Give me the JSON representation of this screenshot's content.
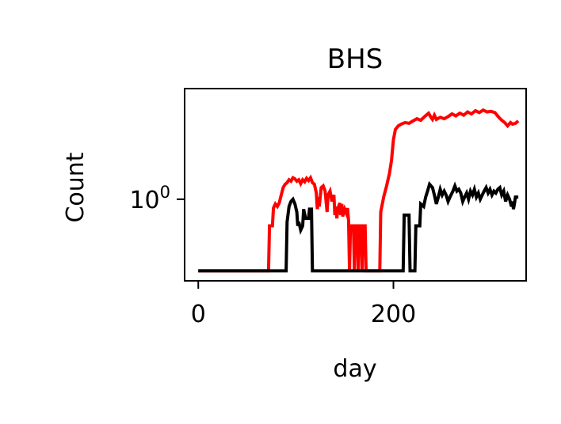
{
  "chart_data": {
    "type": "line",
    "title": "BHS",
    "xlabel": "day",
    "ylabel": "Count",
    "x_scale": "linear",
    "y_scale": "log",
    "xlim": [
      -14,
      336
    ],
    "ylim": [
      0.16,
      12
    ],
    "xticks": [
      {
        "value": 0,
        "label": "0"
      },
      {
        "value": 200,
        "label": "200"
      }
    ],
    "yticks": [
      {
        "value": 1,
        "base": "10",
        "exponent": "0"
      }
    ],
    "grid": false,
    "legend": "none",
    "series": [
      {
        "color": "#ff0000",
        "points": [
          [
            0,
            0.2
          ],
          [
            72,
            0.2
          ],
          [
            73,
            0.55
          ],
          [
            76,
            0.55
          ],
          [
            77,
            0.82
          ],
          [
            79,
            0.9
          ],
          [
            81,
            0.85
          ],
          [
            83,
            0.92
          ],
          [
            85,
            1.1
          ],
          [
            87,
            1.3
          ],
          [
            89,
            1.4
          ],
          [
            91,
            1.45
          ],
          [
            93,
            1.55
          ],
          [
            95,
            1.5
          ],
          [
            97,
            1.62
          ],
          [
            99,
            1.58
          ],
          [
            101,
            1.5
          ],
          [
            103,
            1.55
          ],
          [
            105,
            1.42
          ],
          [
            107,
            1.55
          ],
          [
            109,
            1.48
          ],
          [
            111,
            1.6
          ],
          [
            113,
            1.52
          ],
          [
            115,
            1.62
          ],
          [
            117,
            1.45
          ],
          [
            119,
            1.4
          ],
          [
            121,
            1.15
          ],
          [
            122,
            0.8
          ],
          [
            123,
            1.05
          ],
          [
            124,
            0.85
          ],
          [
            126,
            1.3
          ],
          [
            128,
            1.35
          ],
          [
            130,
            1.2
          ],
          [
            132,
            0.75
          ],
          [
            133,
            1.1
          ],
          [
            135,
            1.2
          ],
          [
            137,
            0.95
          ],
          [
            139,
            1.1
          ],
          [
            140,
            0.7
          ],
          [
            141,
            0.85
          ],
          [
            142,
            0.65
          ],
          [
            143,
            0.8
          ],
          [
            145,
            0.92
          ],
          [
            146,
            0.7
          ],
          [
            147,
            0.9
          ],
          [
            148,
            0.68
          ],
          [
            150,
            0.8
          ],
          [
            152,
            0.72
          ],
          [
            153,
            0.82
          ],
          [
            154,
            0.62
          ],
          [
            155,
            0.2
          ],
          [
            156,
            0.55
          ],
          [
            159,
            0.55
          ],
          [
            160,
            0.2
          ],
          [
            161,
            0.55
          ],
          [
            163,
            0.55
          ],
          [
            164,
            0.2
          ],
          [
            165,
            0.55
          ],
          [
            167,
            0.55
          ],
          [
            168,
            0.2
          ],
          [
            169,
            0.55
          ],
          [
            171,
            0.55
          ],
          [
            172,
            0.2
          ],
          [
            186,
            0.2
          ],
          [
            187,
            0.75
          ],
          [
            190,
            1.05
          ],
          [
            193,
            1.35
          ],
          [
            196,
            1.8
          ],
          [
            198,
            2.4
          ],
          [
            200,
            3.8
          ],
          [
            202,
            4.8
          ],
          [
            205,
            5.2
          ],
          [
            208,
            5.4
          ],
          [
            212,
            5.6
          ],
          [
            216,
            5.5
          ],
          [
            220,
            5.8
          ],
          [
            224,
            6.1
          ],
          [
            228,
            5.9
          ],
          [
            232,
            6.4
          ],
          [
            236,
            6.9
          ],
          [
            238,
            6.4
          ],
          [
            240,
            6.0
          ],
          [
            242,
            6.6
          ],
          [
            244,
            6.0
          ],
          [
            248,
            6.3
          ],
          [
            252,
            6.1
          ],
          [
            256,
            6.4
          ],
          [
            260,
            6.8
          ],
          [
            264,
            6.5
          ],
          [
            268,
            6.9
          ],
          [
            272,
            6.6
          ],
          [
            276,
            7.1
          ],
          [
            280,
            6.8
          ],
          [
            284,
            7.3
          ],
          [
            288,
            7.0
          ],
          [
            292,
            7.4
          ],
          [
            296,
            7.1
          ],
          [
            300,
            7.2
          ],
          [
            304,
            7.0
          ],
          [
            308,
            6.3
          ],
          [
            311,
            5.9
          ],
          [
            314,
            5.6
          ],
          [
            317,
            5.2
          ],
          [
            320,
            5.6
          ],
          [
            322,
            5.4
          ],
          [
            325,
            5.5
          ],
          [
            328,
            5.8
          ]
        ]
      },
      {
        "color": "#000000",
        "points": [
          [
            0,
            0.2
          ],
          [
            90,
            0.2
          ],
          [
            91,
            0.6
          ],
          [
            93,
            0.85
          ],
          [
            95,
            0.95
          ],
          [
            97,
            1.0
          ],
          [
            99,
            0.9
          ],
          [
            101,
            0.75
          ],
          [
            102,
            0.55
          ],
          [
            103,
            0.6
          ],
          [
            105,
            0.5
          ],
          [
            107,
            0.55
          ],
          [
            108,
            0.8
          ],
          [
            110,
            0.65
          ],
          [
            113,
            0.65
          ],
          [
            114,
            0.8
          ],
          [
            116,
            0.8
          ],
          [
            117,
            0.2
          ],
          [
            210,
            0.2
          ],
          [
            211,
            0.7
          ],
          [
            216,
            0.7
          ],
          [
            217,
            0.2
          ],
          [
            222,
            0.2
          ],
          [
            223,
            0.55
          ],
          [
            227,
            0.55
          ],
          [
            228,
            0.9
          ],
          [
            231,
            0.85
          ],
          [
            233,
            1.05
          ],
          [
            235,
            1.2
          ],
          [
            237,
            1.4
          ],
          [
            240,
            1.3
          ],
          [
            242,
            1.1
          ],
          [
            244,
            0.9
          ],
          [
            246,
            1.05
          ],
          [
            248,
            1.25
          ],
          [
            250,
            1.1
          ],
          [
            252,
            1.2
          ],
          [
            254,
            1.1
          ],
          [
            256,
            0.95
          ],
          [
            258,
            1.05
          ],
          [
            261,
            1.2
          ],
          [
            263,
            1.35
          ],
          [
            265,
            1.2
          ],
          [
            267,
            1.25
          ],
          [
            269,
            1.15
          ],
          [
            271,
            0.95
          ],
          [
            273,
            1.05
          ],
          [
            275,
            1.15
          ],
          [
            277,
            1.0
          ],
          [
            279,
            1.2
          ],
          [
            281,
            1.1
          ],
          [
            283,
            1.25
          ],
          [
            285,
            1.05
          ],
          [
            287,
            1.15
          ],
          [
            289,
            1.0
          ],
          [
            291,
            1.1
          ],
          [
            293,
            1.2
          ],
          [
            295,
            1.3
          ],
          [
            297,
            1.15
          ],
          [
            299,
            1.25
          ],
          [
            301,
            1.1
          ],
          [
            303,
            1.2
          ],
          [
            305,
            1.15
          ],
          [
            307,
            1.25
          ],
          [
            309,
            1.3
          ],
          [
            311,
            1.1
          ],
          [
            313,
            1.2
          ],
          [
            315,
            0.95
          ],
          [
            317,
            1.1
          ],
          [
            319,
            1.0
          ],
          [
            321,
            0.85
          ],
          [
            322,
            0.95
          ],
          [
            323,
            0.8
          ],
          [
            324,
            0.9
          ],
          [
            325,
            1.05
          ],
          [
            328,
            1.05
          ]
        ]
      }
    ]
  }
}
